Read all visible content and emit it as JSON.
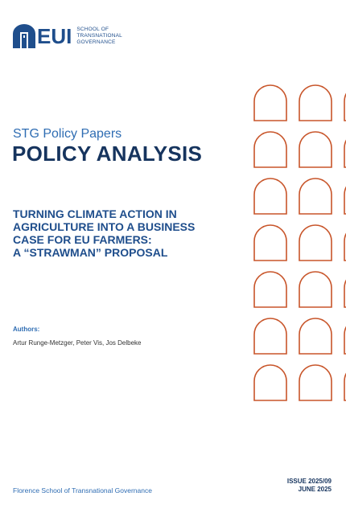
{
  "logo": {
    "wordmark": "EUI",
    "subtitle_lines": [
      "School of",
      "Transnational",
      "Governance"
    ],
    "brand_color": "#1f4e8c"
  },
  "cover": {
    "series": "STG Policy Papers",
    "type": "POLICY ANALYSIS",
    "title_lines": [
      "TURNING CLIMATE ACTION IN",
      "AGRICULTURE INTO A BUSINESS",
      "CASE FOR EU FARMERS:",
      "A “STRAWMAN” PROPOSAL"
    ],
    "authors_label": "Authors:",
    "authors": "Artur Runge-Metzger, Peter Vis, Jos Delbeke"
  },
  "footer": {
    "publisher": "Florence School of Transnational Governance",
    "issue": "ISSUE 2025/09",
    "date": "JUNE 2025"
  },
  "decoration": {
    "arch_color": "#c8552a",
    "arch_rows": 7,
    "arch_cols": 3
  }
}
